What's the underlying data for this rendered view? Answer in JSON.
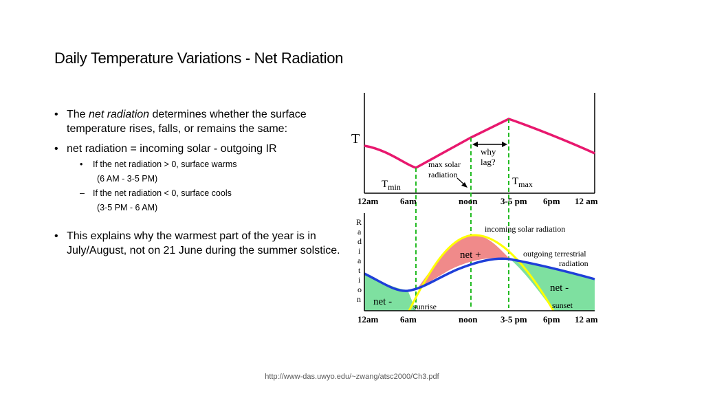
{
  "slide": {
    "title": "Daily Temperature Variations - Net Radiation",
    "bullets": {
      "b1_pre": "The ",
      "b1_em": "net radiation",
      "b1_post": " determines whether the surface temperature rises, falls, or remains the same:",
      "b2": "net radiation = incoming solar - outgoing IR",
      "sub1": "If the net radiation > 0, surface warms",
      "sub1_detail": "(6 AM - 3-5 PM)",
      "sub2": "If the net radiation < 0, surface cools",
      "sub2_detail": "(3-5 PM - 6 AM)",
      "b3": "This explains why the warmest part of the year is in July/August, not on 21 June during the summer solstice."
    },
    "footer": "http://www-das.uwyo.edu/~zwang/atsc2000/Ch3.pdf"
  },
  "diagram": {
    "top": {
      "y_label": "T",
      "tmin": "T",
      "tmin_sub": "min",
      "tmax": "T",
      "tmax_sub": "max",
      "why_lag_1": "why",
      "why_lag_2": "lag?",
      "max_solar_1": "max solar",
      "max_solar_2": "radiation",
      "x_ticks": [
        "12am",
        "6am",
        "noon",
        "3-5 pm",
        "6pm",
        "12 am"
      ]
    },
    "bottom": {
      "y_label_letters": [
        "R",
        "a",
        "d",
        "i",
        "a",
        "t",
        "i",
        "o",
        "n"
      ],
      "incoming": "incoming solar radiation",
      "outgoing_1": "outgoing terrestrial",
      "outgoing_2": "radiation",
      "net_plus": "net +",
      "net_minus_left": "net -",
      "net_minus_right": "net -",
      "sunrise": "sunrise",
      "sunset": "sunset",
      "x_ticks": [
        "12am",
        "6am",
        "noon",
        "3-5 pm",
        "6pm",
        "12 am"
      ]
    },
    "colors": {
      "temperature_curve": "#e8186e",
      "incoming_curve": "#ffff00",
      "outgoing_curve": "#1f3fd8",
      "net_positive_fill": "#f08a8a",
      "net_negative_fill": "#7ee0a0",
      "guide_lines": "#22bb22"
    }
  }
}
